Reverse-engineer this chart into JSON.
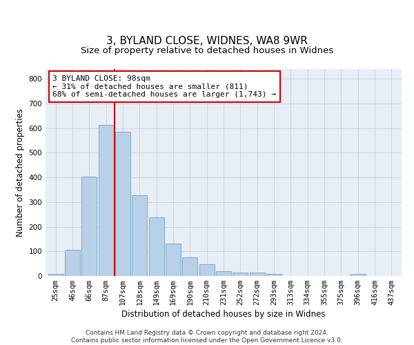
{
  "title": "3, BYLAND CLOSE, WIDNES, WA8 9WR",
  "subtitle": "Size of property relative to detached houses in Widnes",
  "xlabel": "Distribution of detached houses by size in Widnes",
  "ylabel": "Number of detached properties",
  "footnote1": "Contains HM Land Registry data © Crown copyright and database right 2024.",
  "footnote2": "Contains public sector information licensed under the Open Government Licence v3.0.",
  "bar_labels": [
    "25sqm",
    "46sqm",
    "66sqm",
    "87sqm",
    "107sqm",
    "128sqm",
    "149sqm",
    "169sqm",
    "190sqm",
    "210sqm",
    "231sqm",
    "252sqm",
    "272sqm",
    "293sqm",
    "313sqm",
    "334sqm",
    "355sqm",
    "375sqm",
    "396sqm",
    "416sqm",
    "437sqm"
  ],
  "bar_values": [
    8,
    107,
    403,
    612,
    585,
    327,
    238,
    133,
    77,
    49,
    21,
    15,
    15,
    8,
    0,
    0,
    0,
    0,
    8,
    0,
    0
  ],
  "bar_color": "#b8d0e8",
  "bar_edge_color": "#7aaac8",
  "vline_color": "#cc0000",
  "vline_bar_index": 3.5,
  "annotation_text": "3 BYLAND CLOSE: 98sqm\n← 31% of detached houses are smaller (811)\n68% of semi-detached houses are larger (1,743) →",
  "annotation_box_color": "#ffffff",
  "annotation_box_edge": "#cc0000",
  "ylim": [
    0,
    840
  ],
  "yticks": [
    0,
    100,
    200,
    300,
    400,
    500,
    600,
    700,
    800
  ],
  "grid_color": "#c8d0dc",
  "bg_color": "#e8eef5",
  "title_fontsize": 11,
  "axis_label_fontsize": 8.5,
  "tick_fontsize": 7.5,
  "annotation_fontsize": 8,
  "footnote_fontsize": 6.5
}
